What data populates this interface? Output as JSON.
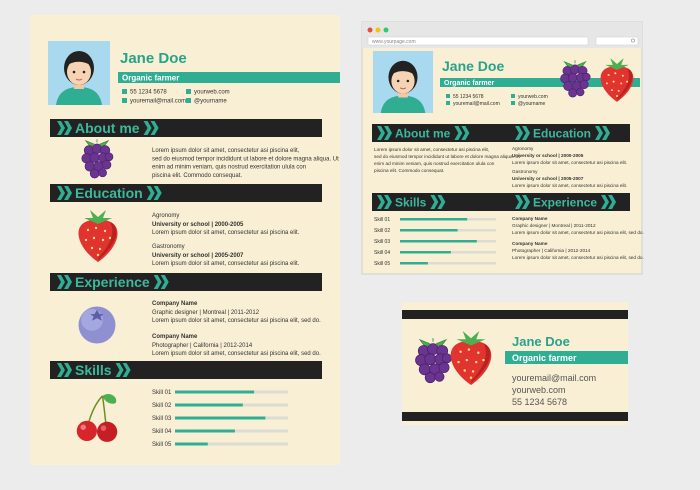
{
  "profile": {
    "name": "Jane Doe",
    "role": "Organic farmer",
    "phone": "55 1234 5678",
    "email": "youremail@mail.com",
    "web": "yourweb.com",
    "handle": "@yourname"
  },
  "browser": {
    "url": "www.yourpage.com"
  },
  "sections": {
    "about": "About me",
    "education": "Education",
    "experience": "Experience",
    "skills": "Skills"
  },
  "about": [
    "Lorem ipsum dolor sit amet, consectetur asi piscina elit,",
    "sed do eiusmod tempor incididunt ut labore et dolore magna aliqua. Ut",
    "enim ad minim veniam, quis nostrud exercitation ulula con",
    "piscina elit. Commodo consequat."
  ],
  "education": [
    {
      "field": "Agronomy",
      "school": "University or school | 2000-2005",
      "text": "Lorem ipsum dolor sit amet, consectetur asi piscina elit."
    },
    {
      "field": "Gastronomy",
      "school": "University or school | 2005-2007",
      "text": "Lorem ipsum dolor sit amet, consectetur asi piscina elit."
    }
  ],
  "experience": [
    {
      "company": "Company Name",
      "details": "Graphic designer | Montreal | 2011-2012",
      "text": "Lorem ipsum dolor sit amet, consectetur asi piscina elit, sed do."
    },
    {
      "company": "Company Name",
      "details": "Photographer | California | 2012-2014",
      "text": "Lorem ipsum dolor sit amet, consectetur asi piscina elit, sed do."
    }
  ],
  "skills": [
    {
      "name": "Skill 01",
      "level": 70
    },
    {
      "name": "Skill 02",
      "level": 60
    },
    {
      "name": "Skill 03",
      "level": 80
    },
    {
      "name": "Skill 04",
      "level": 53
    },
    {
      "name": "Skill 05",
      "level": 29
    }
  ],
  "skills_max": 100
}
